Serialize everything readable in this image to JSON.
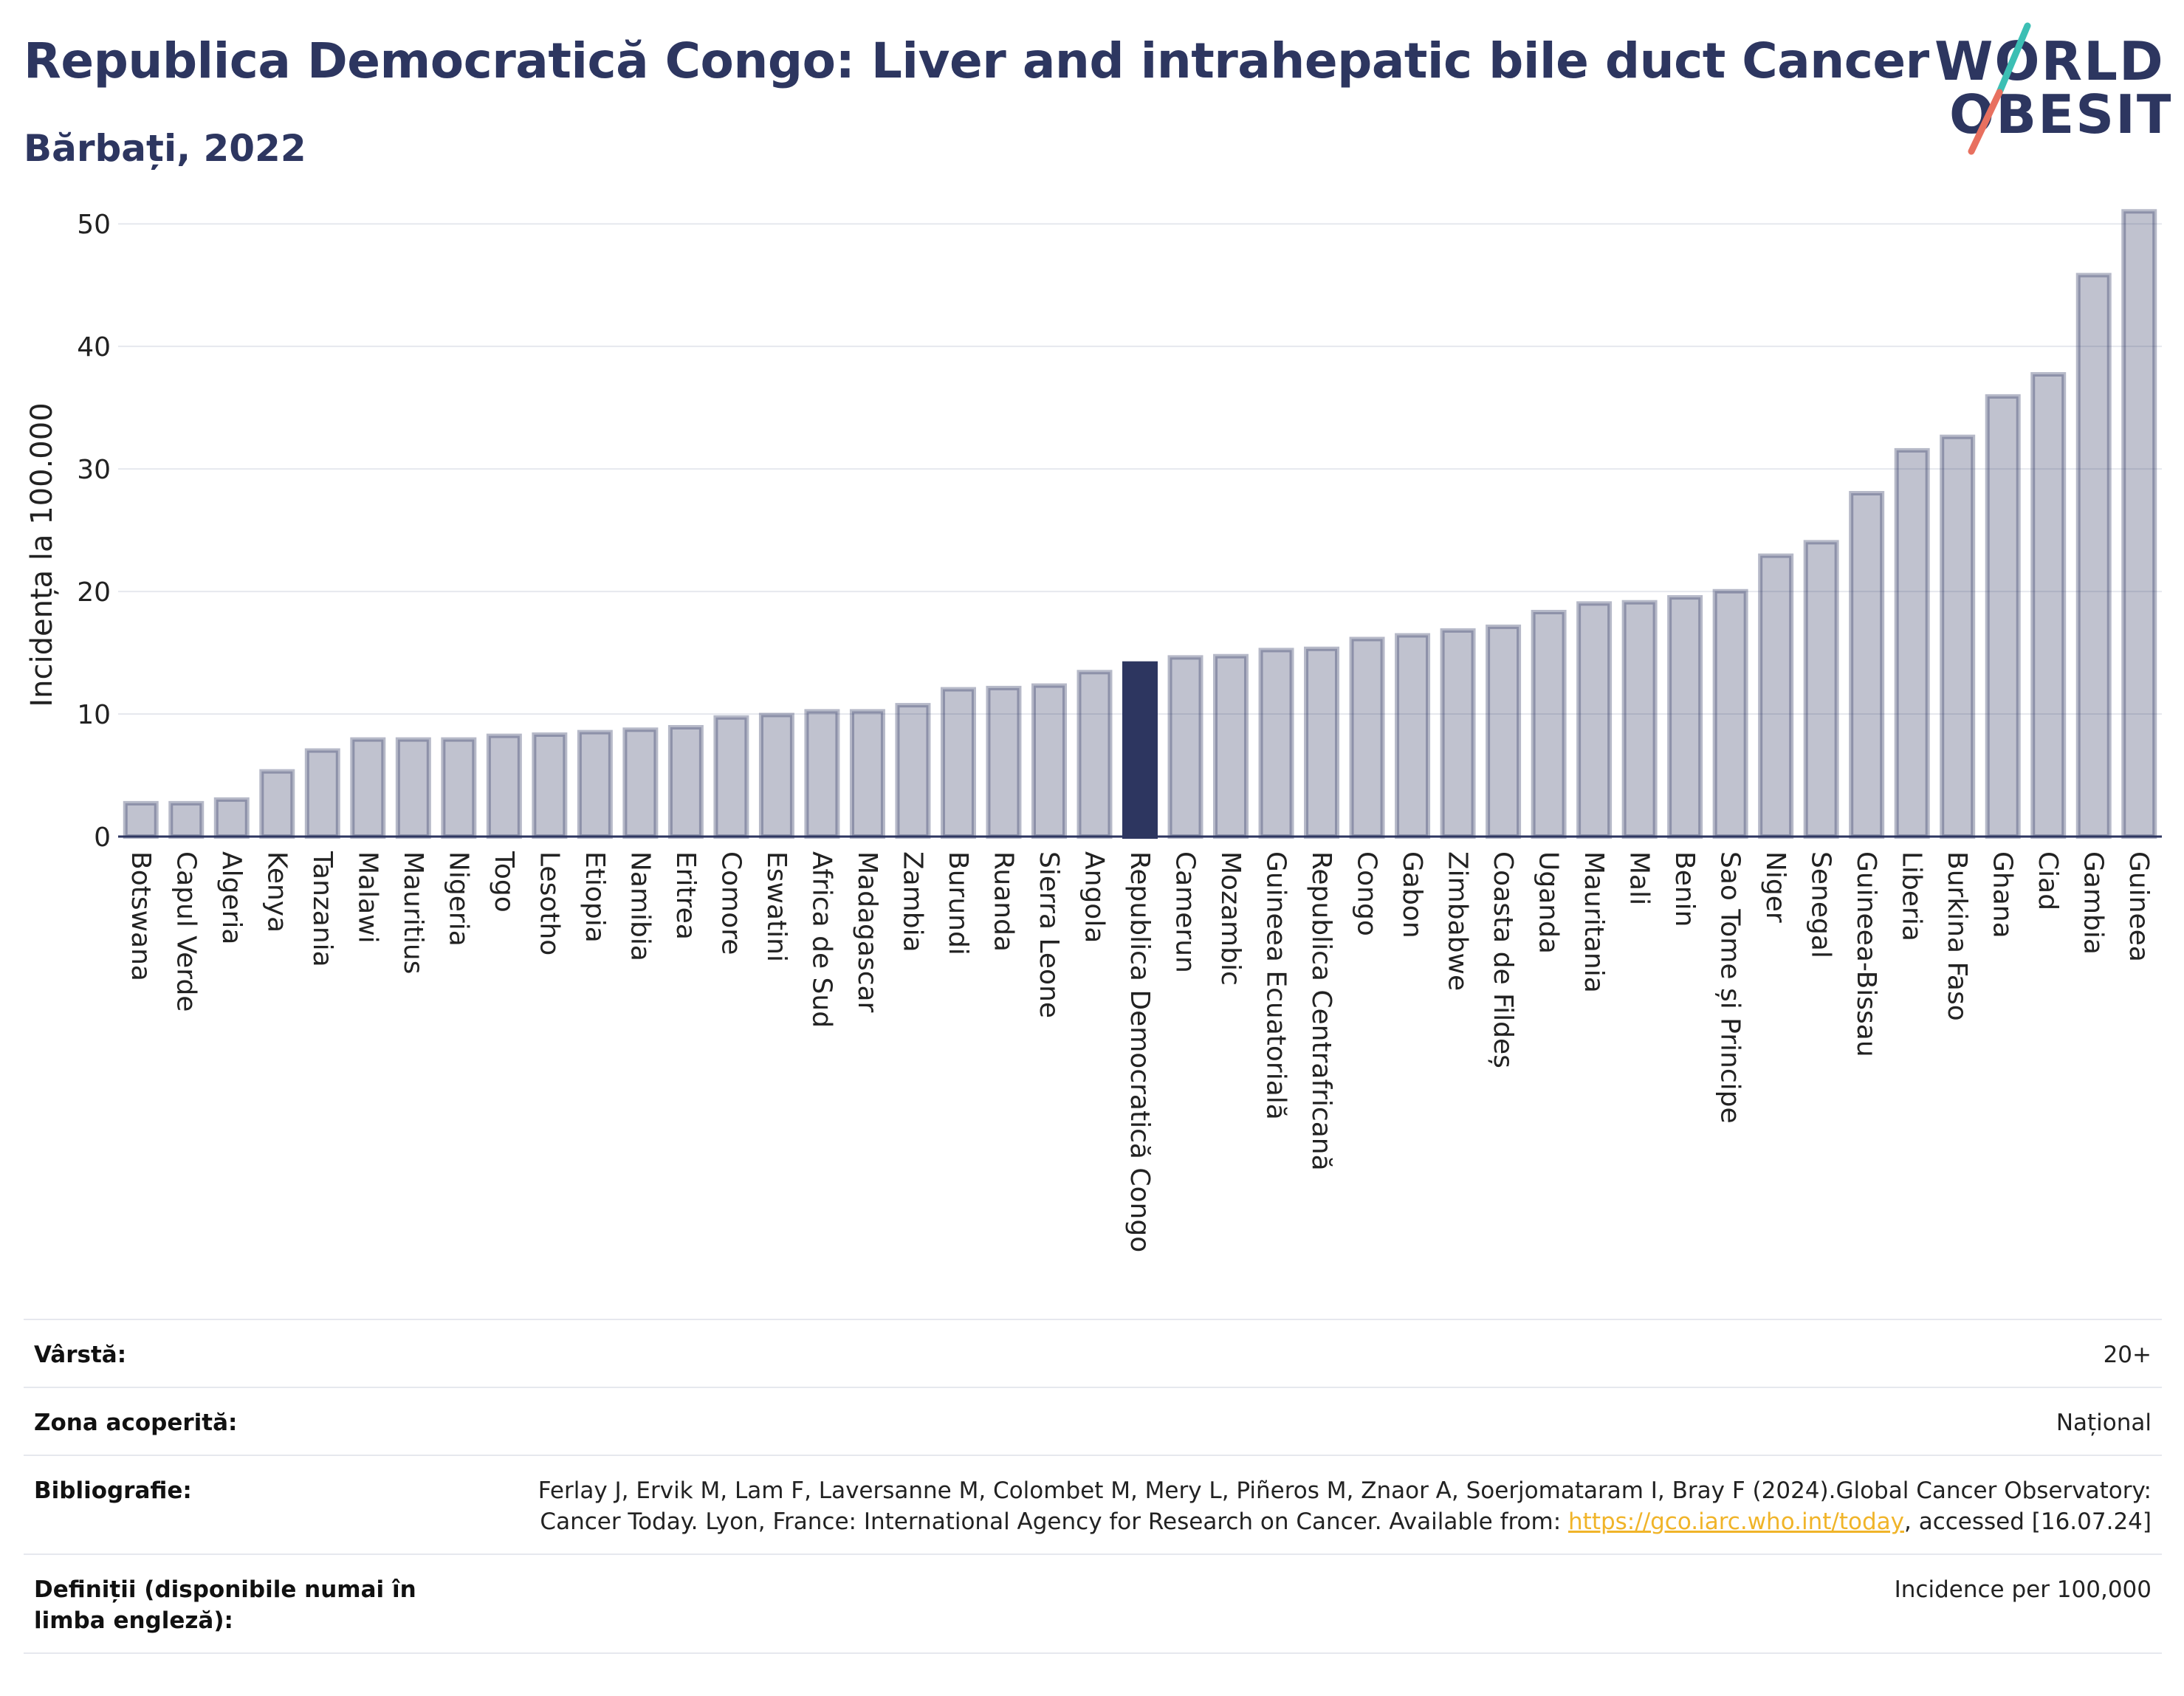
{
  "header": {
    "title": "Republica Democratică Congo: Liver and intrahepatic bile duct Cancer",
    "subtitle": "Bărbați, 2022"
  },
  "logo": {
    "line1": "WORLD",
    "line2": "OBESITY",
    "colors": {
      "text": "#2d3660",
      "slash_top": "#3cbfb4",
      "slash_bottom": "#e8705f"
    }
  },
  "colors": {
    "bar_fill": "#2d3660",
    "bar_fill_opacity": 0.3,
    "highlight": "#2d3660",
    "grid": "#e6e8ee",
    "axis": "#2d3660"
  },
  "chart_data": {
    "type": "bar",
    "title": "",
    "xlabel": "",
    "ylabel": "Incidența la 100.000",
    "ylim": [
      0,
      52
    ],
    "yticks": [
      0,
      10,
      20,
      30,
      40,
      50
    ],
    "grid": true,
    "highlight_category": "Republica Democratică Congo",
    "categories": [
      "Botswana",
      "Capul Verde",
      "Algeria",
      "Kenya",
      "Tanzania",
      "Malawi",
      "Mauritius",
      "Nigeria",
      "Togo",
      "Lesotho",
      "Etiopia",
      "Namibia",
      "Eritrea",
      "Comore",
      "Eswatini",
      "Africa de Sud",
      "Madagascar",
      "Zambia",
      "Burundi",
      "Ruanda",
      "Sierra Leone",
      "Angola",
      "Republica Democratică Congo",
      "Camerun",
      "Mozambic",
      "Guineea Ecuatorială",
      "Republica Centrafricană",
      "Congo",
      "Gabon",
      "Zimbabwe",
      "Coasta de Fildeș",
      "Uganda",
      "Mauritania",
      "Mali",
      "Benin",
      "Sao Tome și Principe",
      "Niger",
      "Senegal",
      "Guineea-Bissau",
      "Liberia",
      "Burkina Faso",
      "Ghana",
      "Ciad",
      "Gambia",
      "Guineea"
    ],
    "values": [
      2.9,
      2.9,
      3.2,
      5.5,
      7.2,
      8.1,
      8.1,
      8.1,
      8.4,
      8.5,
      8.7,
      8.9,
      9.1,
      9.9,
      10.1,
      10.4,
      10.4,
      10.9,
      12.2,
      12.3,
      12.5,
      13.6,
      14.3,
      14.8,
      14.9,
      15.4,
      15.5,
      16.3,
      16.6,
      17.0,
      17.3,
      18.5,
      19.2,
      19.3,
      19.7,
      20.2,
      23.1,
      24.2,
      28.2,
      31.7,
      32.8,
      36.1,
      37.9,
      46.0,
      51.2
    ]
  },
  "info": {
    "age_label": "Vârstă:",
    "age_value": "20+",
    "area_label": "Zona acoperită:",
    "area_value": "Național",
    "biblio_label": "Bibliografie:",
    "biblio_text_1": "Ferlay J, Ervik M, Lam F, Laversanne M, Colombet M, Mery L, Piñeros M, Znaor A, Soerjomataram I, Bray F (2024).Global Cancer Observatory: Cancer Today. Lyon, France: International Agency for Research on Cancer. Available from: ",
    "biblio_link": "https://gco.iarc.who.int/today",
    "biblio_text_2": ", accessed [16.07.24]",
    "def_label": "Definiții (disponibile numai în limba engleză):",
    "def_value": "Incidence per 100,000"
  }
}
